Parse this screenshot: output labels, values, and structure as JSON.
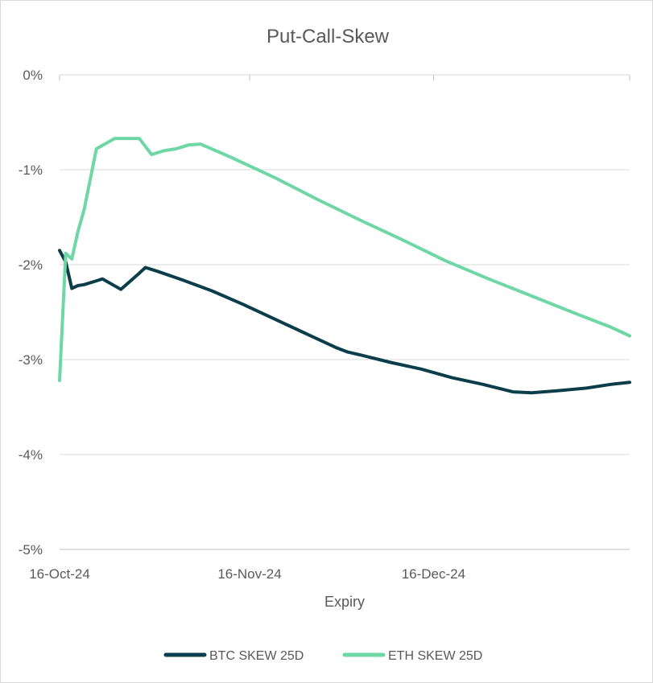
{
  "chart_data": {
    "type": "line",
    "title": "Put-Call-Skew",
    "xlabel": "Expiry",
    "ylabel": "",
    "x_type": "date",
    "xlim": [
      "2024-10-16",
      "2025-01-17"
    ],
    "ylim": [
      -5,
      0
    ],
    "y_unit": "%",
    "y_ticks": [
      "0%",
      "-1%",
      "-2%",
      "-3%",
      "-4%",
      "-5%"
    ],
    "y_tick_values": [
      0,
      -1,
      -2,
      -3,
      -4,
      -5
    ],
    "x_ticks": [
      "16-Oct-24",
      "16-Nov-24",
      "16-Dec-24"
    ],
    "x_tick_dates": [
      "2024-10-16",
      "2024-11-16",
      "2024-12-16"
    ],
    "grid": "horizontal",
    "legend_position": "bottom",
    "colors": {
      "btc": "#0b3d4a",
      "eth": "#6fd6a6",
      "grid": "#d9d9d9",
      "text": "#595959"
    },
    "series": [
      {
        "name": "BTC SKEW 25D",
        "color": "#0b3d4a",
        "points": [
          [
            "2024-10-16",
            -1.85
          ],
          [
            "2024-10-17",
            -1.97
          ],
          [
            "2024-10-18",
            -2.25
          ],
          [
            "2024-10-19",
            -2.22
          ],
          [
            "2024-10-20",
            -2.21
          ],
          [
            "2024-10-22",
            -2.17
          ],
          [
            "2024-10-23",
            -2.15
          ],
          [
            "2024-10-26",
            -2.26
          ],
          [
            "2024-10-29",
            -2.09
          ],
          [
            "2024-10-30",
            -2.03
          ],
          [
            "2024-11-01",
            -2.07
          ],
          [
            "2024-11-05",
            -2.16
          ],
          [
            "2024-11-10",
            -2.28
          ],
          [
            "2024-11-15",
            -2.42
          ],
          [
            "2024-11-20",
            -2.57
          ],
          [
            "2024-11-25",
            -2.72
          ],
          [
            "2024-11-30",
            -2.87
          ],
          [
            "2024-12-02",
            -2.92
          ],
          [
            "2024-12-04",
            -2.95
          ],
          [
            "2024-12-09",
            -3.03
          ],
          [
            "2024-12-14",
            -3.1
          ],
          [
            "2024-12-19",
            -3.19
          ],
          [
            "2024-12-24",
            -3.26
          ],
          [
            "2024-12-29",
            -3.34
          ],
          [
            "2025-01-01",
            -3.35
          ],
          [
            "2025-01-05",
            -3.33
          ],
          [
            "2025-01-10",
            -3.3
          ],
          [
            "2025-01-14",
            -3.26
          ],
          [
            "2025-01-17",
            -3.24
          ]
        ]
      },
      {
        "name": "ETH SKEW 25D",
        "color": "#6fd6a6",
        "points": [
          [
            "2024-10-16",
            -3.22
          ],
          [
            "2024-10-17",
            -1.88
          ],
          [
            "2024-10-18",
            -1.94
          ],
          [
            "2024-10-19",
            -1.65
          ],
          [
            "2024-10-20",
            -1.42
          ],
          [
            "2024-10-22",
            -0.78
          ],
          [
            "2024-10-25",
            -0.67
          ],
          [
            "2024-10-29",
            -0.67
          ],
          [
            "2024-10-31",
            -0.84
          ],
          [
            "2024-11-02",
            -0.8
          ],
          [
            "2024-11-04",
            -0.78
          ],
          [
            "2024-11-06",
            -0.74
          ],
          [
            "2024-11-08",
            -0.73
          ],
          [
            "2024-11-13",
            -0.87
          ],
          [
            "2024-11-20",
            -1.08
          ],
          [
            "2024-11-27",
            -1.31
          ],
          [
            "2024-12-04",
            -1.53
          ],
          [
            "2024-12-11",
            -1.74
          ],
          [
            "2024-12-18",
            -1.96
          ],
          [
            "2024-12-25",
            -2.15
          ],
          [
            "2025-01-01",
            -2.33
          ],
          [
            "2025-01-08",
            -2.51
          ],
          [
            "2025-01-14",
            -2.66
          ],
          [
            "2025-01-17",
            -2.75
          ]
        ]
      }
    ]
  }
}
